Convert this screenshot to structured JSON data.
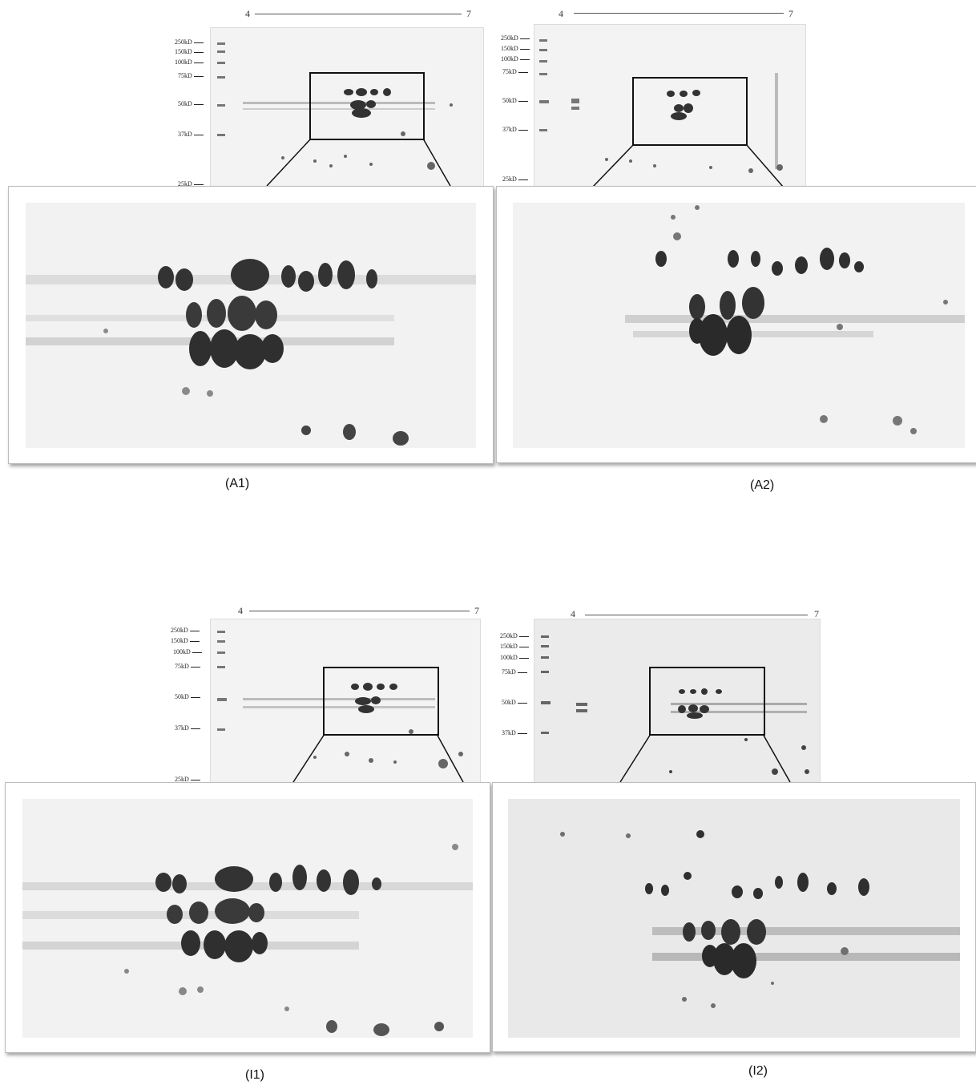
{
  "panels": [
    {
      "id": "A1",
      "caption": "(A1)",
      "ph_start": "4",
      "ph_end": "7",
      "markers": [
        "250kD",
        "150kD",
        "100kD",
        "75kD",
        "50kD",
        "37kD",
        "25kD"
      ]
    },
    {
      "id": "A2",
      "caption": "(A2)",
      "ph_start": "4",
      "ph_end": "7",
      "markers": [
        "250kD",
        "150kD",
        "100kD",
        "75kD",
        "50kD",
        "37kD",
        "25kD"
      ]
    },
    {
      "id": "I1",
      "caption": "(I1)",
      "ph_start": "4",
      "ph_end": "7",
      "markers": [
        "250kD",
        "150kD",
        "100kD",
        "75kD",
        "50kD",
        "37kD",
        "25kD"
      ]
    },
    {
      "id": "I2",
      "caption": "(I2)",
      "ph_start": "4",
      "ph_end": "7",
      "markers": [
        "250kD",
        "150kD",
        "100kD",
        "75kD",
        "50kD",
        "37kD"
      ]
    }
  ]
}
